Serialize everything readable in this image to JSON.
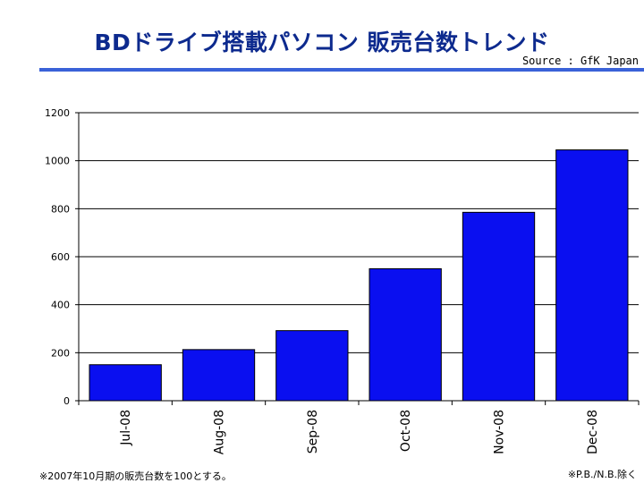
{
  "header": {
    "title": "BDドライブ搭載パソコン 販売台数トレンド",
    "source": "Source : GfK Japan"
  },
  "footnotes": {
    "left": "※2007年10月期の販売台数を100とする。",
    "right": "※P.B./N.B.除く"
  },
  "colors": {
    "bar": "#0a0ff0",
    "bar_stroke": "#000000",
    "title": "#0d2a8e",
    "rule": "#3a62d8"
  },
  "chart_data": {
    "type": "bar",
    "categories": [
      "Jul-08",
      "Aug-08",
      "Sep-08",
      "Oct-08",
      "Nov-08",
      "Dec-08"
    ],
    "values": [
      150,
      213,
      292,
      550,
      785,
      1045
    ],
    "ylim": [
      0,
      1200
    ],
    "yticks": [
      0,
      200,
      400,
      600,
      800,
      1000,
      1200
    ],
    "grid": true,
    "xlabel": "",
    "ylabel": ""
  }
}
